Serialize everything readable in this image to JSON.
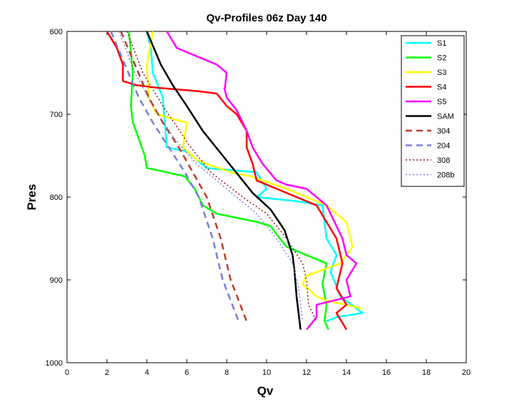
{
  "chart_data": {
    "type": "line",
    "title": "Qv-Profiles 06z Day 140",
    "xlabel": "Qv",
    "ylabel": "Pres",
    "xlim": [
      0,
      20
    ],
    "ylim": [
      600,
      1000
    ],
    "y_reversed": true,
    "xticks": [
      0,
      2,
      4,
      6,
      8,
      10,
      12,
      14,
      16,
      18,
      20
    ],
    "yticks": [
      600,
      700,
      800,
      900,
      1000
    ],
    "grid": false,
    "legend_position": "top-right",
    "series": [
      {
        "name": "S1",
        "color": "#00ffff",
        "dash": "solid",
        "points": [
          [
            4.0,
            600
          ],
          [
            4.2,
            620
          ],
          [
            4.3,
            650
          ],
          [
            4.8,
            680
          ],
          [
            4.9,
            710
          ],
          [
            5.0,
            740
          ],
          [
            6.0,
            745
          ],
          [
            7.0,
            765
          ],
          [
            9.5,
            770
          ],
          [
            10.0,
            790
          ],
          [
            9.5,
            800
          ],
          [
            11.5,
            805
          ],
          [
            12.8,
            810
          ],
          [
            13.0,
            850
          ],
          [
            13.5,
            870
          ],
          [
            13.2,
            890
          ],
          [
            13.7,
            920
          ],
          [
            14.8,
            940
          ],
          [
            13.5,
            945
          ],
          [
            13.0,
            950
          ]
        ]
      },
      {
        "name": "S2",
        "color": "#00ff00",
        "dash": "solid",
        "points": [
          [
            3.1,
            600
          ],
          [
            3.3,
            650
          ],
          [
            3.2,
            690
          ],
          [
            3.3,
            710
          ],
          [
            3.9,
            750
          ],
          [
            4.0,
            765
          ],
          [
            5.0,
            770
          ],
          [
            5.9,
            775
          ],
          [
            6.4,
            790
          ],
          [
            6.8,
            810
          ],
          [
            7.5,
            820
          ],
          [
            8.5,
            825
          ],
          [
            9.5,
            830
          ],
          [
            10.2,
            835
          ],
          [
            10.5,
            845
          ],
          [
            11.0,
            860
          ],
          [
            12.0,
            870
          ],
          [
            13.0,
            880
          ],
          [
            12.8,
            905
          ],
          [
            13.0,
            930
          ],
          [
            12.9,
            950
          ],
          [
            13.1,
            960
          ]
        ]
      },
      {
        "name": "S3",
        "color": "#ffff00",
        "dash": "solid",
        "points": [
          [
            4.3,
            600
          ],
          [
            4.0,
            640
          ],
          [
            4.1,
            680
          ],
          [
            4.5,
            700
          ],
          [
            5.2,
            705
          ],
          [
            6.0,
            710
          ],
          [
            5.8,
            740
          ],
          [
            6.5,
            755
          ],
          [
            7.0,
            760
          ],
          [
            8.2,
            770
          ],
          [
            9.2,
            775
          ],
          [
            9.8,
            780
          ],
          [
            11.0,
            790
          ],
          [
            12.0,
            800
          ],
          [
            13.0,
            810
          ],
          [
            14.0,
            830
          ],
          [
            14.3,
            860
          ],
          [
            13.7,
            880
          ],
          [
            12.0,
            895
          ],
          [
            11.8,
            905
          ],
          [
            12.5,
            920
          ],
          [
            13.0,
            925
          ],
          [
            14.0,
            930
          ],
          [
            14.8,
            935
          ]
        ]
      },
      {
        "name": "S4",
        "color": "#ff0000",
        "dash": "solid",
        "points": [
          [
            2.0,
            600
          ],
          [
            2.5,
            620
          ],
          [
            2.8,
            640
          ],
          [
            2.8,
            660
          ],
          [
            3.5,
            665
          ],
          [
            4.5,
            668
          ],
          [
            6.5,
            672
          ],
          [
            7.5,
            675
          ],
          [
            8.0,
            690
          ],
          [
            8.5,
            700
          ],
          [
            9.0,
            720
          ],
          [
            9.0,
            740
          ],
          [
            9.3,
            760
          ],
          [
            9.5,
            780
          ],
          [
            10.5,
            790
          ],
          [
            11.5,
            800
          ],
          [
            12.5,
            810
          ],
          [
            13.5,
            850
          ],
          [
            13.8,
            880
          ],
          [
            13.5,
            910
          ],
          [
            14.0,
            930
          ],
          [
            13.5,
            940
          ],
          [
            14.0,
            960
          ]
        ]
      },
      {
        "name": "S5",
        "color": "#ff00ff",
        "dash": "solid",
        "points": [
          [
            5.0,
            600
          ],
          [
            5.5,
            620
          ],
          [
            6.5,
            630
          ],
          [
            7.5,
            640
          ],
          [
            8.0,
            650
          ],
          [
            7.9,
            670
          ],
          [
            8.0,
            680
          ],
          [
            8.5,
            695
          ],
          [
            9.0,
            720
          ],
          [
            9.3,
            740
          ],
          [
            9.8,
            760
          ],
          [
            10.5,
            780
          ],
          [
            11.0,
            785
          ],
          [
            12.0,
            790
          ],
          [
            13.0,
            810
          ],
          [
            13.2,
            820
          ],
          [
            13.8,
            850
          ],
          [
            14.0,
            870
          ],
          [
            14.5,
            880
          ],
          [
            14.0,
            900
          ],
          [
            14.2,
            920
          ],
          [
            12.5,
            930
          ],
          [
            12.5,
            945
          ],
          [
            12.0,
            960
          ]
        ]
      },
      {
        "name": "SAM",
        "color": "#000000",
        "dash": "solid",
        "points": [
          [
            4.0,
            600
          ],
          [
            4.7,
            640
          ],
          [
            5.3,
            665
          ],
          [
            6.0,
            690
          ],
          [
            6.8,
            720
          ],
          [
            7.8,
            750
          ],
          [
            8.8,
            780
          ],
          [
            9.3,
            795
          ],
          [
            10.2,
            815
          ],
          [
            10.9,
            840
          ],
          [
            11.3,
            870
          ],
          [
            11.4,
            890
          ],
          [
            11.5,
            920
          ],
          [
            11.6,
            940
          ],
          [
            11.7,
            960
          ]
        ]
      },
      {
        "name": "304",
        "color": "#c0392b",
        "dash": "dashed",
        "points": [
          [
            2.7,
            600
          ],
          [
            3.4,
            640
          ],
          [
            4.1,
            680
          ],
          [
            4.8,
            710
          ],
          [
            5.6,
            740
          ],
          [
            6.3,
            770
          ],
          [
            7.0,
            800
          ],
          [
            7.7,
            850
          ],
          [
            8.2,
            900
          ],
          [
            9.0,
            950
          ]
        ]
      },
      {
        "name": "204",
        "color": "#7b7bdf",
        "dash": "dashed",
        "points": [
          [
            2.2,
            600
          ],
          [
            2.9,
            640
          ],
          [
            3.6,
            680
          ],
          [
            4.3,
            710
          ],
          [
            5.1,
            740
          ],
          [
            5.9,
            770
          ],
          [
            6.6,
            800
          ],
          [
            7.3,
            850
          ],
          [
            7.8,
            900
          ],
          [
            8.6,
            950
          ]
        ]
      },
      {
        "name": "308",
        "color": "#8b1a1a",
        "dash": "dotted",
        "points": [
          [
            3.0,
            600
          ],
          [
            3.8,
            650
          ],
          [
            4.8,
            690
          ],
          [
            6.2,
            740
          ],
          [
            7.2,
            770
          ],
          [
            8.8,
            800
          ],
          [
            10.0,
            820
          ],
          [
            11.0,
            850
          ],
          [
            11.8,
            880
          ],
          [
            12.0,
            900
          ],
          [
            12.1,
            930
          ],
          [
            12.5,
            950
          ]
        ]
      },
      {
        "name": "208b",
        "color": "#7b7bdf",
        "dash": "dotted",
        "points": [
          [
            2.6,
            600
          ],
          [
            3.4,
            650
          ],
          [
            4.3,
            690
          ],
          [
            5.4,
            730
          ],
          [
            6.5,
            760
          ],
          [
            8.0,
            790
          ],
          [
            9.5,
            820
          ],
          [
            10.5,
            850
          ],
          [
            11.3,
            880
          ],
          [
            11.6,
            910
          ],
          [
            11.8,
            950
          ]
        ]
      }
    ]
  }
}
